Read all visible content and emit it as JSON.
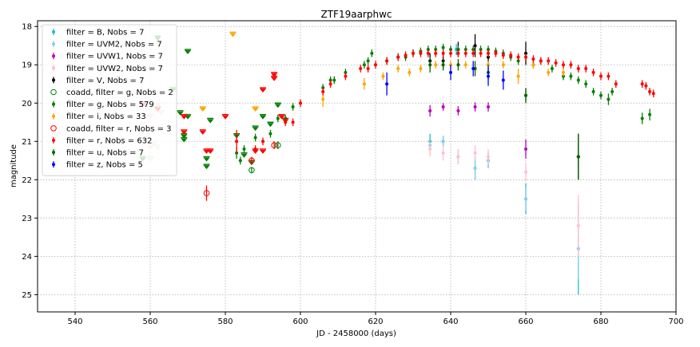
{
  "chart_data": {
    "type": "scatter",
    "title": "ZTF19aarphwc",
    "xlabel": "JD - 2458000 (days)",
    "ylabel": "magnitude",
    "xlim": [
      530,
      700
    ],
    "ylim": [
      25.45,
      17.85
    ],
    "y_inverted": true,
    "grid": true,
    "legend_position": "upper-left",
    "xticks": [
      540,
      560,
      580,
      600,
      620,
      640,
      660,
      680,
      700
    ],
    "yticks": [
      18,
      19,
      20,
      21,
      22,
      23,
      24,
      25
    ],
    "series": [
      {
        "name": "filter = B, Nobs = 7",
        "color": "#17becf",
        "marker": "dot",
        "points": [
          [
            634.5,
            21.0,
            0.2
          ],
          [
            638,
            21.0,
            0.15
          ],
          [
            646.5,
            21.7,
            0.3
          ],
          [
            650,
            21.5,
            0.2
          ],
          [
            660,
            22.5,
            0.4
          ],
          [
            674,
            23.8,
            1.2
          ],
          [
            641.5,
            18.6,
            0.15
          ]
        ]
      },
      {
        "name": "filter = UVM2, Nobs = 7",
        "color": "#87ceeb",
        "marker": "dot",
        "points": [
          [
            634.5,
            21.1,
            0.15
          ],
          [
            638,
            21.0,
            0.15
          ],
          [
            646.5,
            21.7,
            0.3
          ],
          [
            650,
            21.5,
            0.2
          ],
          [
            660,
            22.5,
            0.3
          ],
          [
            674,
            23.8,
            0.8
          ],
          [
            642,
            21.4,
            0.2
          ]
        ]
      },
      {
        "name": "filter = UVW1, Nobs = 7",
        "color": "#bf00bf",
        "marker": "dot",
        "points": [
          [
            634.5,
            20.2,
            0.15
          ],
          [
            638,
            20.1,
            0.1
          ],
          [
            642,
            20.2,
            0.12
          ],
          [
            646.5,
            20.1,
            0.12
          ],
          [
            650,
            20.1,
            0.12
          ],
          [
            660,
            21.2,
            0.25
          ],
          [
            674,
            21.4,
            0.3
          ]
        ]
      },
      {
        "name": "filter = UVW2, Nobs = 7",
        "color": "#ffc0cb",
        "marker": "dot",
        "points": [
          [
            634.5,
            21.2,
            0.2
          ],
          [
            638,
            21.3,
            0.2
          ],
          [
            642,
            21.4,
            0.2
          ],
          [
            646.5,
            21.3,
            0.2
          ],
          [
            650,
            21.4,
            0.2
          ],
          [
            660,
            21.8,
            0.25
          ],
          [
            674,
            23.2,
            0.8
          ]
        ]
      },
      {
        "name": "filter = V, Nobs = 7",
        "color": "#000000",
        "marker": "dot",
        "points": [
          [
            634.5,
            18.9,
            0.2
          ],
          [
            638,
            18.9,
            0.2
          ],
          [
            642,
            18.6,
            0.2
          ],
          [
            646.5,
            18.5,
            0.3
          ],
          [
            650,
            18.8,
            0.2
          ],
          [
            660,
            18.7,
            0.3
          ],
          [
            674,
            21.4,
            0.6
          ]
        ]
      },
      {
        "name": "coadd, filter = g, Nobs = 2",
        "color": "#008000",
        "marker": "open-circle",
        "points": [
          [
            587,
            21.75,
            0.08
          ],
          [
            594,
            21.1,
            0.1
          ]
        ]
      },
      {
        "name": "filter = g, Nobs = 579",
        "color": "#008000",
        "marker": "dot",
        "points": [
          [
            583,
            21.3,
            0.15
          ],
          [
            584,
            21.5,
            0.1
          ],
          [
            585,
            21.2,
            0.1
          ],
          [
            588,
            20.9,
            0.1
          ],
          [
            592,
            20.8,
            0.1
          ],
          [
            594,
            20.4,
            0.1
          ],
          [
            596,
            20.4,
            0.1
          ],
          [
            598,
            20.1,
            0.1
          ],
          [
            606,
            19.6,
            0.1
          ],
          [
            608,
            19.4,
            0.1
          ],
          [
            609,
            19.4,
            0.1
          ],
          [
            612,
            19.2,
            0.1
          ],
          [
            617,
            19.0,
            0.1
          ],
          [
            618,
            18.9,
            0.1
          ],
          [
            619,
            18.7,
            0.1
          ],
          [
            623,
            18.9,
            0.1
          ],
          [
            626,
            18.8,
            0.1
          ],
          [
            628,
            18.8,
            0.1
          ],
          [
            630,
            18.7,
            0.1
          ],
          [
            632,
            18.65,
            0.1
          ],
          [
            634,
            18.6,
            0.1
          ],
          [
            636,
            18.6,
            0.1
          ],
          [
            638,
            18.55,
            0.1
          ],
          [
            640,
            18.6,
            0.1
          ],
          [
            642,
            18.6,
            0.1
          ],
          [
            644,
            18.6,
            0.1
          ],
          [
            646,
            18.6,
            0.1
          ],
          [
            648,
            18.6,
            0.1
          ],
          [
            650,
            18.6,
            0.1
          ],
          [
            652,
            18.65,
            0.1
          ],
          [
            654,
            18.7,
            0.1
          ],
          [
            656,
            18.8,
            0.1
          ],
          [
            658,
            18.9,
            0.1
          ],
          [
            660,
            19.8,
            0.15
          ],
          [
            662,
            19.0,
            0.1
          ],
          [
            664,
            18.9,
            0.1
          ],
          [
            667,
            19.1,
            0.1
          ],
          [
            670,
            19.3,
            0.1
          ],
          [
            672,
            19.3,
            0.1
          ],
          [
            674,
            19.4,
            0.1
          ],
          [
            676,
            19.5,
            0.1
          ],
          [
            678,
            19.7,
            0.1
          ],
          [
            680,
            19.8,
            0.1
          ],
          [
            682,
            19.9,
            0.15
          ],
          [
            683,
            19.7,
            0.1
          ],
          [
            691,
            20.4,
            0.15
          ],
          [
            693,
            20.3,
            0.15
          ]
        ]
      },
      {
        "name": "filter = i, Nobs = 33",
        "color": "#ffa500",
        "marker": "dot",
        "points": [
          [
            606,
            19.9,
            0.2
          ],
          [
            617,
            19.5,
            0.15
          ],
          [
            622,
            19.3,
            0.1
          ],
          [
            626,
            19.1,
            0.1
          ],
          [
            629,
            19.2,
            0.1
          ],
          [
            632,
            19.1,
            0.1
          ],
          [
            636,
            19.0,
            0.1
          ],
          [
            640,
            19.0,
            0.1
          ],
          [
            644,
            19.0,
            0.1
          ],
          [
            650,
            19.0,
            0.1
          ],
          [
            654,
            19.0,
            0.1
          ],
          [
            658,
            19.3,
            0.2
          ],
          [
            662,
            19.0,
            0.1
          ],
          [
            666,
            19.2,
            0.1
          ],
          [
            670,
            19.2,
            0.1
          ]
        ]
      },
      {
        "name": "coadd, filter = r, Nobs = 3",
        "color": "#ff0000",
        "marker": "open-circle",
        "points": [
          [
            575,
            22.35,
            0.2
          ],
          [
            587,
            21.5,
            0.1
          ],
          [
            593,
            21.1,
            0.1
          ]
        ]
      },
      {
        "name": "filter = r, Nobs = 632",
        "color": "#ff0000",
        "marker": "dot",
        "points": [
          [
            583,
            21.0,
            0.3
          ],
          [
            588,
            21.2,
            0.1
          ],
          [
            590,
            21.0,
            0.1
          ],
          [
            596,
            20.5,
            0.1
          ],
          [
            598,
            20.5,
            0.1
          ],
          [
            600,
            20.0,
            0.1
          ],
          [
            606,
            19.7,
            0.1
          ],
          [
            608,
            19.5,
            0.1
          ],
          [
            612,
            19.3,
            0.1
          ],
          [
            616,
            19.1,
            0.1
          ],
          [
            618,
            19.1,
            0.1
          ],
          [
            620,
            19.0,
            0.1
          ],
          [
            623,
            18.9,
            0.1
          ],
          [
            626,
            18.8,
            0.1
          ],
          [
            628,
            18.75,
            0.1
          ],
          [
            630,
            18.7,
            0.1
          ],
          [
            632,
            18.7,
            0.1
          ],
          [
            634,
            18.7,
            0.1
          ],
          [
            636,
            18.7,
            0.1
          ],
          [
            638,
            18.7,
            0.1
          ],
          [
            640,
            18.7,
            0.1
          ],
          [
            642,
            18.7,
            0.1
          ],
          [
            644,
            18.7,
            0.1
          ],
          [
            646,
            18.7,
            0.1
          ],
          [
            648,
            18.7,
            0.1
          ],
          [
            650,
            18.7,
            0.1
          ],
          [
            652,
            18.7,
            0.1
          ],
          [
            654,
            18.75,
            0.1
          ],
          [
            656,
            18.75,
            0.1
          ],
          [
            658,
            18.8,
            0.1
          ],
          [
            660,
            18.8,
            0.1
          ],
          [
            662,
            18.85,
            0.1
          ],
          [
            664,
            18.9,
            0.1
          ],
          [
            666,
            18.9,
            0.1
          ],
          [
            668,
            18.95,
            0.1
          ],
          [
            670,
            19.0,
            0.1
          ],
          [
            672,
            19.0,
            0.1
          ],
          [
            674,
            19.1,
            0.1
          ],
          [
            676,
            19.1,
            0.1
          ],
          [
            678,
            19.2,
            0.1
          ],
          [
            680,
            19.3,
            0.1
          ],
          [
            682,
            19.3,
            0.1
          ],
          [
            684,
            19.5,
            0.1
          ],
          [
            691,
            19.5,
            0.1
          ],
          [
            692,
            19.55,
            0.1
          ],
          [
            693,
            19.7,
            0.1
          ],
          [
            694,
            19.75,
            0.1
          ]
        ]
      },
      {
        "name": "filter = u, Nobs = 7",
        "color": "#006400",
        "marker": "dot",
        "points": [
          [
            634.5,
            19.0,
            0.2
          ],
          [
            638,
            19.0,
            0.15
          ],
          [
            642,
            19.0,
            0.15
          ],
          [
            646.5,
            19.1,
            0.2
          ],
          [
            650,
            19.2,
            0.2
          ],
          [
            660,
            19.8,
            0.2
          ],
          [
            674,
            21.4,
            0.6
          ]
        ]
      },
      {
        "name": "filter = z, Nobs = 5",
        "color": "#0000ff",
        "marker": "dot",
        "points": [
          [
            623,
            19.5,
            0.3
          ],
          [
            640,
            19.2,
            0.2
          ],
          [
            646,
            19.1,
            0.2
          ],
          [
            650,
            19.3,
            0.25
          ],
          [
            654,
            19.4,
            0.25
          ]
        ]
      }
    ],
    "upper_limits": [
      {
        "filter": "g",
        "color": "#008000",
        "points": [
          [
            562,
            18.25
          ],
          [
            570,
            18.6
          ],
          [
            566,
            19.6
          ],
          [
            568,
            20.2
          ],
          [
            569,
            20.8
          ],
          [
            570,
            20.3
          ],
          [
            575,
            21.4
          ],
          [
            576,
            20.4
          ],
          [
            583,
            20.8
          ],
          [
            585,
            21.3
          ],
          [
            587,
            21.5
          ],
          [
            588,
            20.6
          ],
          [
            590,
            20.3
          ],
          [
            592,
            20.5
          ],
          [
            594,
            20.0
          ],
          [
            558,
            21.4
          ],
          [
            560,
            21.4
          ],
          [
            575,
            21.6
          ],
          [
            569,
            20.9
          ]
        ]
      },
      {
        "filter": "i",
        "color": "#ffa500",
        "points": [
          [
            582,
            18.15
          ],
          [
            574,
            20.1
          ],
          [
            588,
            20.1
          ]
        ]
      },
      {
        "filter": "r",
        "color": "#ff0000",
        "points": [
          [
            558,
            20.0
          ],
          [
            562,
            20.1
          ],
          [
            569,
            20.3
          ],
          [
            569,
            20.7
          ],
          [
            574,
            20.7
          ],
          [
            575,
            21.2
          ],
          [
            576,
            21.2
          ],
          [
            580,
            20.3
          ],
          [
            590,
            21.2
          ],
          [
            588,
            21.2
          ],
          [
            590,
            19.6
          ],
          [
            593,
            19.2
          ],
          [
            593,
            19.3
          ],
          [
            596,
            20.4
          ],
          [
            595,
            20.3
          ]
        ]
      },
      {
        "filter": "UVW2",
        "color": "#ffc0cb",
        "points": [
          [
            541,
            21.2
          ],
          [
            542,
            21.2
          ],
          [
            560,
            20.3
          ],
          [
            562,
            20.0
          ],
          [
            563,
            20.2
          ],
          [
            558,
            20.5
          ],
          [
            560,
            21.1
          ]
        ]
      },
      {
        "filter": "UVM2",
        "color": "#c8ecd0",
        "points": [
          [
            541,
            21.0
          ],
          [
            560,
            21.4
          ],
          [
            561,
            21.0
          ],
          [
            562,
            21.1
          ],
          [
            558,
            20.7
          ]
        ]
      }
    ]
  }
}
